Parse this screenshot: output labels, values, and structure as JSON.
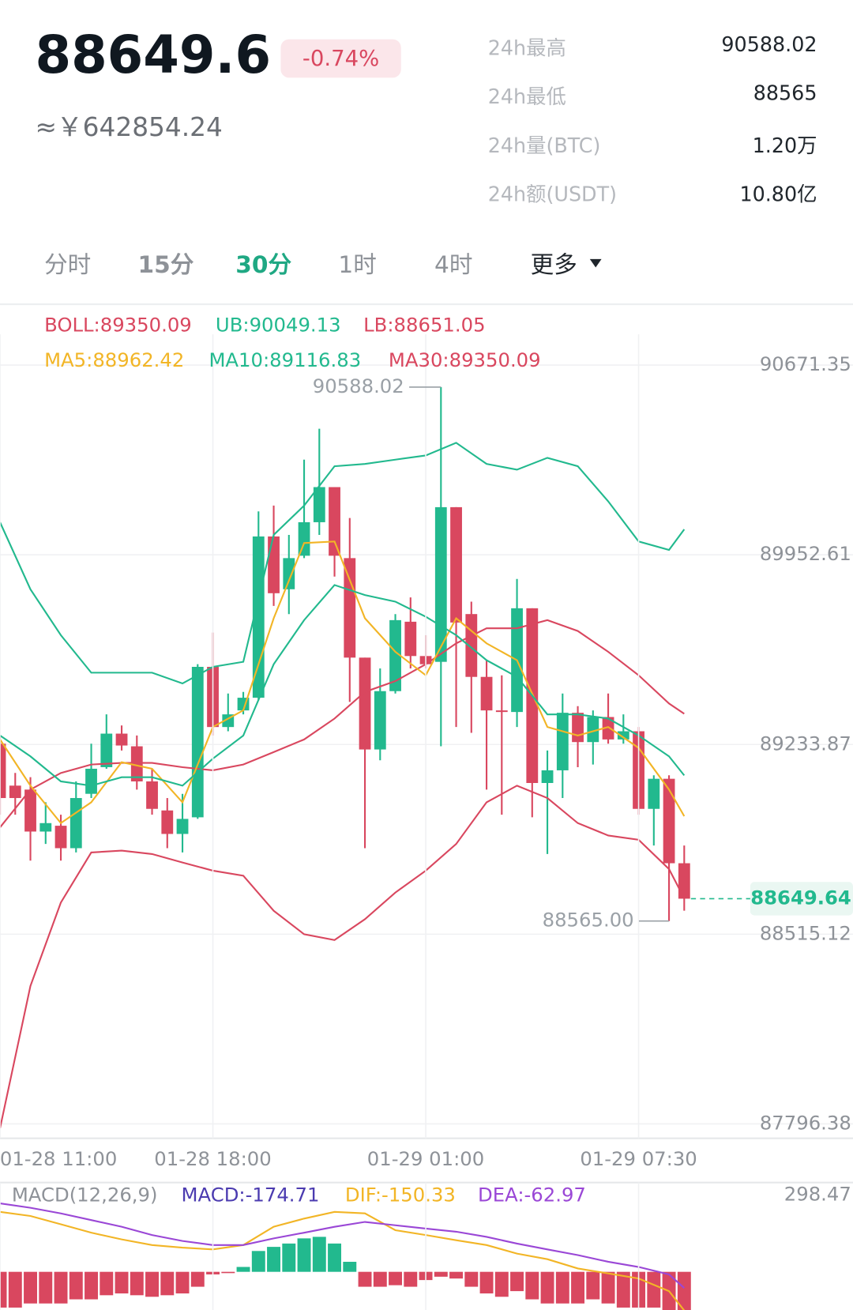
{
  "header": {
    "price": "88649.6",
    "change": "-0.74%",
    "cny": "≈￥642854.24",
    "stats": [
      {
        "label": "24h最高",
        "value": "90588.02"
      },
      {
        "label": "24h最低",
        "value": "88565"
      },
      {
        "label": "24h量(BTC)",
        "value": "1.20万"
      },
      {
        "label": "24h额(USDT)",
        "value": "10.80亿"
      }
    ]
  },
  "tabs": [
    "分时",
    "15分",
    "30分",
    "1时",
    "4时",
    "更多"
  ],
  "chart_data": {
    "type": "candlestick",
    "categories": [
      "01-28 11:00",
      null,
      null,
      null,
      null,
      null,
      null,
      null,
      null,
      null,
      null,
      null,
      null,
      null,
      "01-28 18:00",
      null,
      null,
      null,
      null,
      null,
      null,
      null,
      null,
      null,
      null,
      null,
      null,
      null,
      "01-29 01:00",
      null,
      null,
      null,
      null,
      null,
      null,
      null,
      null,
      null,
      null,
      null,
      null,
      null,
      "01-29 07:30",
      null,
      null,
      null
    ],
    "ohlc": {
      "up_color": "#22b98e",
      "down_color": "#d9475f",
      "open": [
        89237,
        89078,
        89063,
        88904,
        88926,
        88841,
        89047,
        89148,
        89275,
        89227,
        89094,
        88984,
        88895,
        88958,
        89528,
        89300,
        89363,
        89411,
        90022,
        89822,
        89949,
        90076,
        90209,
        89940,
        89563,
        89215,
        89436,
        89699,
        89569,
        89547,
        90133,
        89728,
        89490,
        89363,
        89357,
        89750,
        89088,
        89136,
        89354,
        89243,
        89338,
        89253,
        89284,
        88990,
        89104,
        88784
      ],
      "high": [
        89268,
        89126,
        89110,
        89015,
        88968,
        89094,
        89237,
        89348,
        89306,
        89268,
        89142,
        89031,
        89047,
        89538,
        89658,
        89427,
        89433,
        90117,
        90139,
        90028,
        90313,
        90430,
        90209,
        90092,
        89563,
        89522,
        89728,
        89791,
        89648,
        90588.02,
        90133,
        89775,
        89553,
        89496,
        89861,
        89750,
        89211,
        89427,
        89379,
        89363,
        89427,
        89348,
        89300,
        89117,
        89117,
        88851
      ],
      "low": [
        88968,
        88968,
        88794,
        88857,
        88794,
        88825,
        89031,
        89142,
        89211,
        89063,
        88968,
        88841,
        88825,
        88952,
        89268,
        89284,
        89348,
        89401,
        89759,
        89728,
        89940,
        90028,
        89870,
        89395,
        88841,
        89174,
        89427,
        89522,
        89522,
        89227,
        89300,
        89278,
        89063,
        88968,
        89300,
        88958,
        88819,
        89031,
        89148,
        89158,
        89237,
        89237,
        88968,
        88851,
        88565,
        88604
      ],
      "close": [
        89031,
        89031,
        88904,
        88936,
        88841,
        89031,
        89142,
        89275,
        89230,
        89094,
        88990,
        88895,
        88952,
        89528,
        89300,
        89348,
        89411,
        90022,
        89807,
        89940,
        90076,
        90209,
        89949,
        89563,
        89215,
        89436,
        89705,
        89569,
        89538,
        90133,
        89696,
        89490,
        89363,
        89357,
        89750,
        89088,
        89136,
        89354,
        89243,
        89338,
        89253,
        89284,
        88990,
        89104,
        88784,
        88649.64
      ]
    },
    "indicators": [
      {
        "label": "BOLL:89350.09",
        "color": "#d9475f",
        "x": [
          0,
          2,
          4,
          6,
          8,
          10,
          12,
          14,
          16,
          18,
          20,
          22,
          24,
          26,
          28,
          30,
          32,
          34,
          36,
          38,
          40,
          42,
          44,
          45
        ],
        "values": [
          88920,
          89063,
          89126,
          89158,
          89164,
          89164,
          89148,
          89136,
          89158,
          89205,
          89253,
          89332,
          89433,
          89474,
          89538,
          89617,
          89674,
          89674,
          89705,
          89664,
          89585,
          89496,
          89389,
          89350.09
        ]
      },
      {
        "label": "UB:90049.13",
        "color": "#22b98e",
        "x": [
          0,
          2,
          4,
          6,
          8,
          10,
          12,
          14,
          16,
          18,
          20,
          22,
          24,
          26,
          28,
          30,
          32,
          34,
          36,
          38,
          40,
          42,
          44,
          45
        ],
        "values": [
          90076,
          89822,
          89648,
          89506,
          89506,
          89506,
          89465,
          89528,
          89547,
          90028,
          90139,
          90288,
          90297,
          90313,
          90329,
          90377,
          90297,
          90275,
          90320,
          90288,
          90155,
          90003,
          89971,
          90049.13
        ]
      },
      {
        "label": "LB:88651.05",
        "color": "#d9475f",
        "x": [
          0,
          2,
          4,
          6,
          8,
          10,
          12,
          14,
          16,
          18,
          20,
          22,
          24,
          26,
          28,
          30,
          32,
          34,
          36,
          38,
          40,
          42,
          44,
          45
        ],
        "values": [
          87780,
          88319,
          88635,
          88825,
          88832,
          88819,
          88787,
          88756,
          88737,
          88604,
          88515,
          88493,
          88572,
          88673,
          88756,
          88857,
          89015,
          89078,
          89031,
          88936,
          88889,
          88873,
          88762,
          88651.05
        ]
      },
      {
        "label": "MA5:88962.42",
        "color": "#f2b526",
        "x": [
          0,
          2,
          4,
          6,
          8,
          10,
          12,
          14,
          16,
          18,
          20,
          22,
          24,
          26,
          28,
          30,
          32,
          34,
          36,
          38,
          40,
          42,
          44,
          45
        ],
        "values": [
          89253,
          89078,
          88936,
          89015,
          89167,
          89142,
          89015,
          89300,
          89363,
          89712,
          89997,
          90003,
          89712,
          89585,
          89496,
          89712,
          89617,
          89553,
          89300,
          89268,
          89300,
          89221,
          89063,
          88962.42
        ]
      },
      {
        "label": "MA10:89116.83",
        "color": "#22b98e",
        "x": [
          0,
          2,
          4,
          6,
          8,
          10,
          12,
          14,
          16,
          18,
          20,
          22,
          24,
          26,
          28,
          30,
          32,
          34,
          36,
          38,
          40,
          42,
          44,
          45
        ],
        "values": [
          89268,
          89189,
          89094,
          89078,
          89110,
          89110,
          89078,
          89180,
          89268,
          89538,
          89705,
          89838,
          89800,
          89775,
          89718,
          89648,
          89553,
          89490,
          89348,
          89348,
          89332,
          89268,
          89189,
          89116.83
        ]
      },
      {
        "label": "MA30:89350.09",
        "color": "#d9475f"
      }
    ],
    "ylim": [
      87742,
      90788
    ],
    "yticks": [
      87796.38,
      88515.12,
      89233.87,
      89952.61,
      90671.35
    ],
    "grid": true,
    "high_annotation": 90588.02,
    "low_annotation": {
      "value": 88565,
      "label": "88565.00"
    },
    "last_price": 88649.64,
    "macd": {
      "title": "MACD(12,26,9)",
      "ylim": [
        -150,
        347
      ],
      "yticks": [
        298.47
      ],
      "histogram": {
        "label": "MACD:-174.71",
        "color": "#4b3bb0",
        "up_color": "#22b98e",
        "down_color": "#d9475f",
        "values": [
          -139,
          -139,
          -123,
          -123,
          -123,
          -107,
          -107,
          -91,
          -84,
          -91,
          -97,
          -91,
          -84,
          -58,
          -10,
          -5,
          19,
          81,
          97,
          110,
          130,
          136,
          110,
          39,
          -58,
          -58,
          -52,
          -58,
          -32,
          -19,
          -26,
          -58,
          -84,
          -97,
          -75,
          -107,
          -123,
          -123,
          -123,
          -107,
          -123,
          -139,
          -139,
          -139,
          -149,
          -174.71
        ]
      },
      "lines": [
        {
          "label": "DIF:-150.33",
          "color": "#f2b526",
          "x": [
            0,
            2,
            4,
            6,
            8,
            10,
            12,
            14,
            16,
            18,
            20,
            22,
            24,
            26,
            28,
            30,
            32,
            34,
            36,
            38,
            40,
            42,
            44,
            45
          ],
          "values": [
            233,
            217,
            185,
            152,
            126,
            104,
            94,
            87,
            104,
            175,
            207,
            233,
            227,
            162,
            143,
            123,
            104,
            71,
            49,
            13,
            -6,
            -26,
            -75,
            -150.33
          ]
        },
        {
          "label": "DEA:-62.97",
          "color": "#9a47d6",
          "x": [
            0,
            2,
            4,
            6,
            8,
            10,
            12,
            14,
            16,
            18,
            20,
            22,
            24,
            26,
            28,
            30,
            32,
            34,
            36,
            38,
            40,
            42,
            44,
            45
          ],
          "values": [
            266,
            249,
            227,
            201,
            175,
            143,
            120,
            104,
            104,
            130,
            152,
            175,
            194,
            181,
            168,
            156,
            136,
            110,
            87,
            65,
            39,
            19,
            -10,
            -62.97
          ]
        }
      ]
    }
  }
}
